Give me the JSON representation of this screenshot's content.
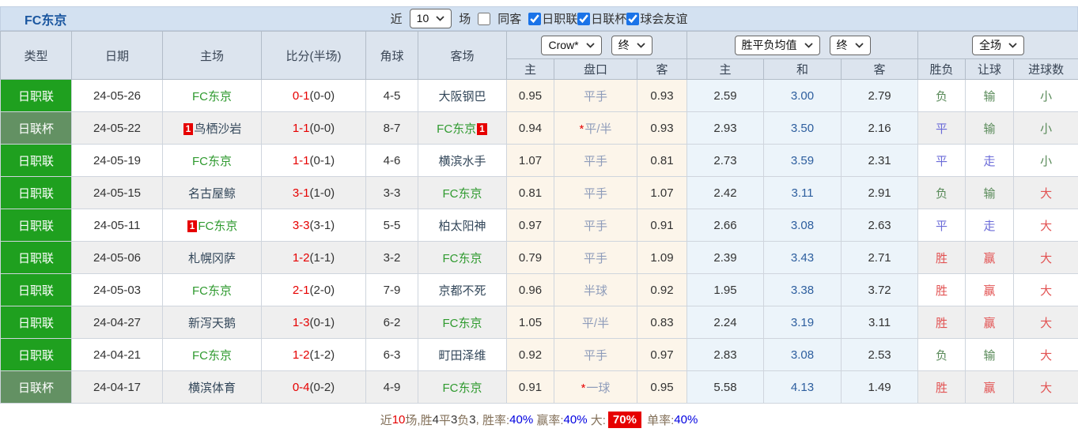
{
  "topbar": {
    "title": "FC东京",
    "near_label": "近",
    "recent_count": "10",
    "games_label": "场",
    "same_opponent_label": "同客",
    "league_filters": [
      {
        "label": "日职联",
        "checked": true
      },
      {
        "label": "日联杯",
        "checked": true
      },
      {
        "label": "球会友谊",
        "checked": true
      }
    ]
  },
  "controls": {
    "odds_company": "Crow*",
    "odds_stage": "终",
    "avg_type": "胜平负均值",
    "avg_stage": "终",
    "scope": "全场"
  },
  "table": {
    "columns": {
      "type": "类型",
      "date": "日期",
      "home": "主场",
      "score": "比分(半场)",
      "corners": "角球",
      "away": "客场",
      "crow": [
        "主",
        "盘口",
        "客"
      ],
      "avg": [
        "主",
        "和",
        "客"
      ],
      "result": [
        "胜负",
        "让球",
        "进球数"
      ]
    },
    "rows": [
      {
        "league": "日职联",
        "league_style": "j1",
        "date": "24-05-26",
        "home": {
          "name": "FC东京",
          "fc": true,
          "card_before": "",
          "card_after": ""
        },
        "score_ft": "0-1",
        "score_ht": "(0-0)",
        "corners": "4-5",
        "away": {
          "name": "大阪钢巴",
          "fc": false,
          "card_before": "",
          "card_after": ""
        },
        "crow": {
          "home": "0.95",
          "handicap": "平手",
          "star": false,
          "away": "0.93"
        },
        "avg": {
          "home": "2.59",
          "draw": "3.00",
          "away": "2.79"
        },
        "result": {
          "text": "负",
          "style": "green"
        },
        "handicap_result": {
          "text": "输",
          "style": "green"
        },
        "goals": {
          "text": "小",
          "style": "green"
        }
      },
      {
        "league": "日联杯",
        "league_style": "cup",
        "date": "24-05-22",
        "home": {
          "name": "鸟栖沙岩",
          "fc": false,
          "card_before": "1",
          "card_after": ""
        },
        "score_ft": "1-1",
        "score_ht": "(0-0)",
        "corners": "8-7",
        "away": {
          "name": "FC东京",
          "fc": true,
          "card_before": "",
          "card_after": "1"
        },
        "crow": {
          "home": "0.94",
          "handicap": "平/半",
          "star": true,
          "away": "0.93"
        },
        "avg": {
          "home": "2.93",
          "draw": "3.50",
          "away": "2.16"
        },
        "result": {
          "text": "平",
          "style": "blue"
        },
        "handicap_result": {
          "text": "输",
          "style": "green"
        },
        "goals": {
          "text": "小",
          "style": "green"
        }
      },
      {
        "league": "日职联",
        "league_style": "j1",
        "date": "24-05-19",
        "home": {
          "name": "FC东京",
          "fc": true,
          "card_before": "",
          "card_after": ""
        },
        "score_ft": "1-1",
        "score_ht": "(0-1)",
        "corners": "4-6",
        "away": {
          "name": "横滨水手",
          "fc": false,
          "card_before": "",
          "card_after": ""
        },
        "crow": {
          "home": "1.07",
          "handicap": "平手",
          "star": false,
          "away": "0.81"
        },
        "avg": {
          "home": "2.73",
          "draw": "3.59",
          "away": "2.31"
        },
        "result": {
          "text": "平",
          "style": "blue"
        },
        "handicap_result": {
          "text": "走",
          "style": "blue"
        },
        "goals": {
          "text": "小",
          "style": "green"
        }
      },
      {
        "league": "日职联",
        "league_style": "j1",
        "date": "24-05-15",
        "home": {
          "name": "名古屋鲸",
          "fc": false,
          "card_before": "",
          "card_after": ""
        },
        "score_ft": "3-1",
        "score_ht": "(1-0)",
        "corners": "3-3",
        "away": {
          "name": "FC东京",
          "fc": true,
          "card_before": "",
          "card_after": ""
        },
        "crow": {
          "home": "0.81",
          "handicap": "平手",
          "star": false,
          "away": "1.07"
        },
        "avg": {
          "home": "2.42",
          "draw": "3.11",
          "away": "2.91"
        },
        "result": {
          "text": "负",
          "style": "green"
        },
        "handicap_result": {
          "text": "输",
          "style": "green"
        },
        "goals": {
          "text": "大",
          "style": "red"
        }
      },
      {
        "league": "日职联",
        "league_style": "j1",
        "date": "24-05-11",
        "home": {
          "name": "FC东京",
          "fc": true,
          "card_before": "1",
          "card_after": ""
        },
        "score_ft": "3-3",
        "score_ht": "(3-1)",
        "corners": "5-5",
        "away": {
          "name": "柏太阳神",
          "fc": false,
          "card_before": "",
          "card_after": ""
        },
        "crow": {
          "home": "0.97",
          "handicap": "平手",
          "star": false,
          "away": "0.91"
        },
        "avg": {
          "home": "2.66",
          "draw": "3.08",
          "away": "2.63"
        },
        "result": {
          "text": "平",
          "style": "blue"
        },
        "handicap_result": {
          "text": "走",
          "style": "blue"
        },
        "goals": {
          "text": "大",
          "style": "red"
        }
      },
      {
        "league": "日职联",
        "league_style": "j1",
        "date": "24-05-06",
        "home": {
          "name": "札幌冈萨",
          "fc": false,
          "card_before": "",
          "card_after": ""
        },
        "score_ft": "1-2",
        "score_ht": "(1-1)",
        "corners": "3-2",
        "away": {
          "name": "FC东京",
          "fc": true,
          "card_before": "",
          "card_after": ""
        },
        "crow": {
          "home": "0.79",
          "handicap": "平手",
          "star": false,
          "away": "1.09"
        },
        "avg": {
          "home": "2.39",
          "draw": "3.43",
          "away": "2.71"
        },
        "result": {
          "text": "胜",
          "style": "red"
        },
        "handicap_result": {
          "text": "赢",
          "style": "red"
        },
        "goals": {
          "text": "大",
          "style": "red"
        }
      },
      {
        "league": "日职联",
        "league_style": "j1",
        "date": "24-05-03",
        "home": {
          "name": "FC东京",
          "fc": true,
          "card_before": "",
          "card_after": ""
        },
        "score_ft": "2-1",
        "score_ht": "(2-0)",
        "corners": "7-9",
        "away": {
          "name": "京都不死",
          "fc": false,
          "card_before": "",
          "card_after": ""
        },
        "crow": {
          "home": "0.96",
          "handicap": "半球",
          "star": false,
          "away": "0.92"
        },
        "avg": {
          "home": "1.95",
          "draw": "3.38",
          "away": "3.72"
        },
        "result": {
          "text": "胜",
          "style": "red"
        },
        "handicap_result": {
          "text": "赢",
          "style": "red"
        },
        "goals": {
          "text": "大",
          "style": "red"
        }
      },
      {
        "league": "日职联",
        "league_style": "j1",
        "date": "24-04-27",
        "home": {
          "name": "新泻天鹅",
          "fc": false,
          "card_before": "",
          "card_after": ""
        },
        "score_ft": "1-3",
        "score_ht": "(0-1)",
        "corners": "6-2",
        "away": {
          "name": "FC东京",
          "fc": true,
          "card_before": "",
          "card_after": ""
        },
        "crow": {
          "home": "1.05",
          "handicap": "平/半",
          "star": false,
          "away": "0.83"
        },
        "avg": {
          "home": "2.24",
          "draw": "3.19",
          "away": "3.11"
        },
        "result": {
          "text": "胜",
          "style": "red"
        },
        "handicap_result": {
          "text": "赢",
          "style": "red"
        },
        "goals": {
          "text": "大",
          "style": "red"
        }
      },
      {
        "league": "日职联",
        "league_style": "j1",
        "date": "24-04-21",
        "home": {
          "name": "FC东京",
          "fc": true,
          "card_before": "",
          "card_after": ""
        },
        "score_ft": "1-2",
        "score_ht": "(1-2)",
        "corners": "6-3",
        "away": {
          "name": "町田泽维",
          "fc": false,
          "card_before": "",
          "card_after": ""
        },
        "crow": {
          "home": "0.92",
          "handicap": "平手",
          "star": false,
          "away": "0.97"
        },
        "avg": {
          "home": "2.83",
          "draw": "3.08",
          "away": "2.53"
        },
        "result": {
          "text": "负",
          "style": "green"
        },
        "handicap_result": {
          "text": "输",
          "style": "green"
        },
        "goals": {
          "text": "大",
          "style": "red"
        }
      },
      {
        "league": "日联杯",
        "league_style": "cup",
        "date": "24-04-17",
        "home": {
          "name": "横滨体育",
          "fc": false,
          "card_before": "",
          "card_after": ""
        },
        "score_ft": "0-4",
        "score_ht": "(0-2)",
        "corners": "4-9",
        "away": {
          "name": "FC东京",
          "fc": true,
          "card_before": "",
          "card_after": ""
        },
        "crow": {
          "home": "0.91",
          "handicap": "一球",
          "star": true,
          "away": "0.95"
        },
        "avg": {
          "home": "5.58",
          "draw": "4.13",
          "away": "1.49"
        },
        "result": {
          "text": "胜",
          "style": "red"
        },
        "handicap_result": {
          "text": "赢",
          "style": "red"
        },
        "goals": {
          "text": "大",
          "style": "red"
        }
      }
    ]
  },
  "footer": {
    "segments": [
      {
        "text": "近",
        "style": "label"
      },
      {
        "text": "10",
        "style": "red"
      },
      {
        "text": "场,",
        "style": "label"
      },
      {
        "text": "胜",
        "style": "label"
      },
      {
        "text": "4",
        "style": "num"
      },
      {
        "text": "平",
        "style": "label"
      },
      {
        "text": "3",
        "style": "num"
      },
      {
        "text": "负",
        "style": "label"
      },
      {
        "text": "3",
        "style": "num"
      },
      {
        "text": ", ",
        "style": "label"
      },
      {
        "text": "胜率:",
        "style": "label"
      },
      {
        "text": "40%",
        "style": "blue"
      },
      {
        "text": " 赢率:",
        "style": "label"
      },
      {
        "text": "40%",
        "style": "blue"
      },
      {
        "text": " 大:",
        "style": "label"
      },
      {
        "text": "70%",
        "style": "badge"
      },
      {
        "text": " 单率:",
        "style": "label"
      },
      {
        "text": "40%",
        "style": "blue"
      }
    ]
  },
  "colors": {
    "win_red": "#e25353",
    "lose_green": "#598a59",
    "draw_blue": "#6b6bd8",
    "score_red": "#e60000",
    "league_j1_green": "#1fa01f",
    "league_cup_green": "#639163",
    "fc_team_green": "#2f9a2f",
    "draw_odds_blue": "#2d5e9e",
    "handicap_slate": "#8e9cba",
    "card_badge_red": "#e60000",
    "checkbox_blue": "#1a73e8",
    "topbar_blue": "#d3e1f1",
    "header_gray_blue": "#dce4ee"
  }
}
